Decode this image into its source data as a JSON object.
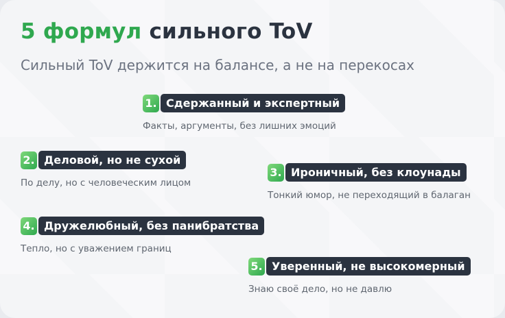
{
  "header": {
    "title_accent": "5 формул",
    "title_rest": "сильного ToV",
    "subtitle": "Сильный ToV держится на балансе, а не на перекосах"
  },
  "items": [
    {
      "number": "1.",
      "label": "Сдержанный и экспертный",
      "description": "Факты, аргументы, без лишних эмоций"
    },
    {
      "number": "2.",
      "label": "Деловой, но не сухой",
      "description": "По делу, но с человеческим лицом"
    },
    {
      "number": "3.",
      "label": "Ироничный, без клоунады",
      "description": "Тонкий юмор, не переходящий в балаган"
    },
    {
      "number": "4.",
      "label": "Дружелюбный, без панибратства",
      "description": "Тепло, но с уважением границ"
    },
    {
      "number": "5.",
      "label": "Уверенный, не высокомерный",
      "description": "Знаю своё дело, но не давлю"
    }
  ]
}
